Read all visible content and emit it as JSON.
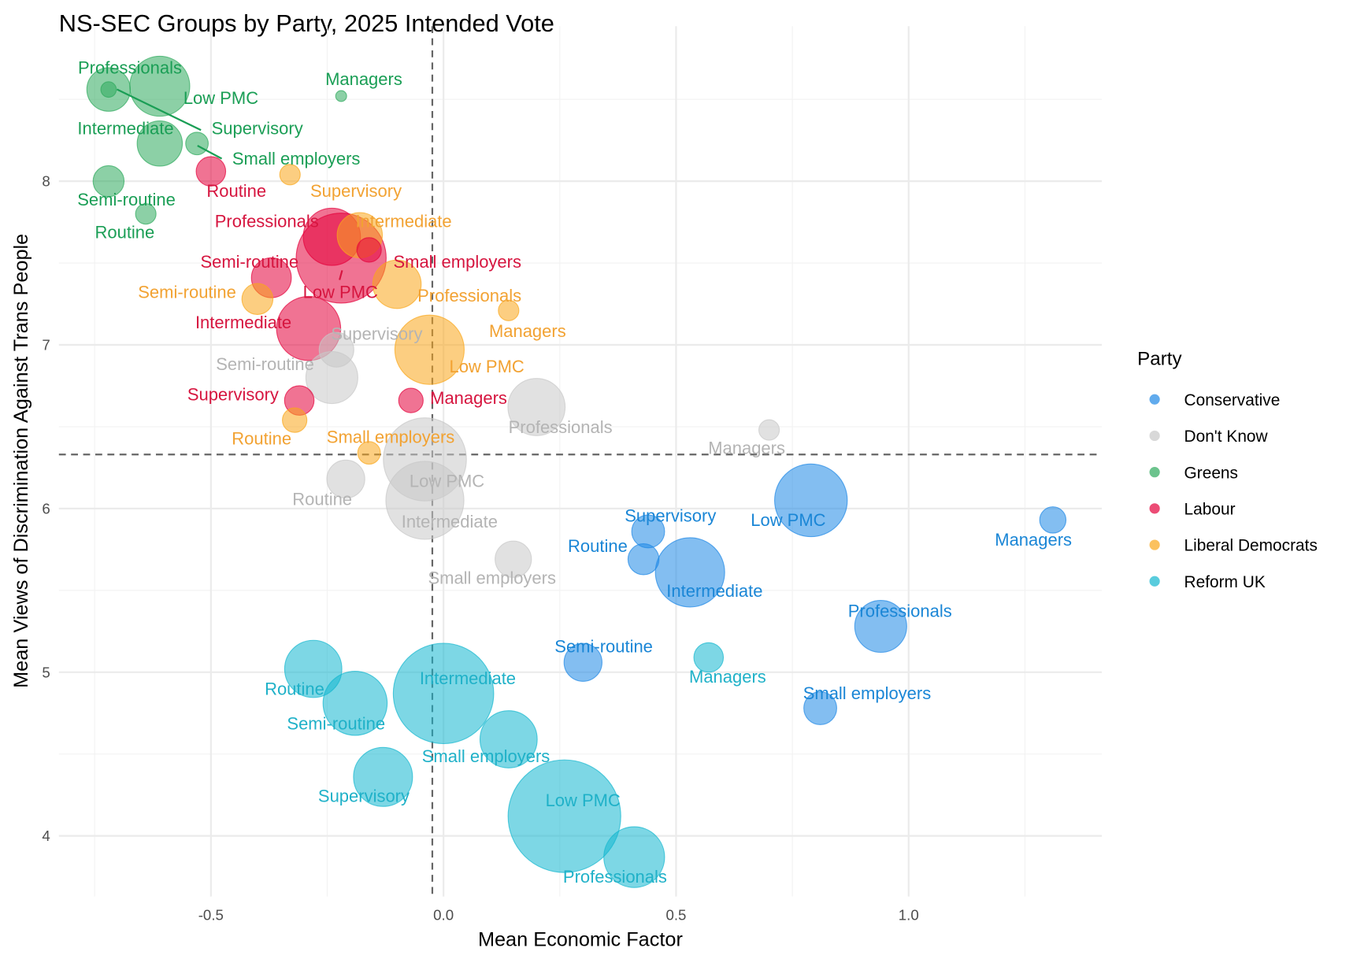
{
  "chart_data": {
    "type": "scatter",
    "title": "NS-SEC Groups by Party, 2025 Intended Vote",
    "xlabel": "Mean Economic Factor",
    "ylabel": "Mean Views of Discrimination Against Trans People",
    "xlim": [
      -0.82,
      1.42
    ],
    "ylim": [
      3.65,
      8.97
    ],
    "x_ticks": [
      {
        "value": -0.5,
        "label": "-0.5"
      },
      {
        "value": 0,
        "label": "0.0"
      },
      {
        "value": 0.5,
        "label": "0.5"
      },
      {
        "value": 1.0,
        "label": "1.0"
      }
    ],
    "y_ticks": [
      {
        "value": 4,
        "label": "4"
      },
      {
        "value": 5,
        "label": "5"
      },
      {
        "value": 6,
        "label": "6"
      },
      {
        "value": 7,
        "label": "7"
      },
      {
        "value": 8,
        "label": "8"
      }
    ],
    "grid": true,
    "reference_lines": {
      "x": -0.024,
      "y": 6.33
    },
    "legend": {
      "title": "Party",
      "placement": "right",
      "entries": [
        {
          "name": "Conservative",
          "color": "#1E88E5"
        },
        {
          "name": "Don't Know",
          "color": "#C8C8C8"
        },
        {
          "name": "Greens",
          "color": "#2EAA5C"
        },
        {
          "name": "Labour",
          "color": "#E4003B"
        },
        {
          "name": "Liberal Democrats",
          "color": "#FAA61A"
        },
        {
          "name": "Reform UK",
          "color": "#12B6CF"
        }
      ]
    },
    "label_colors": {
      "Conservative": "#1A86D6",
      "Don't Know": "#B4B4B4",
      "Greens": "#1A9E55",
      "Labour": "#D6153F",
      "Liberal Democrats": "#F2A232",
      "Reform UK": "#1FB1C8"
    },
    "size_note": "marker area proportional to group size (relative units)",
    "points": [
      {
        "party": "Greens",
        "group": "Professionals",
        "x": -0.72,
        "y": 8.56,
        "size": 6.3
      },
      {
        "party": "Greens",
        "group": "Low PMC",
        "x": -0.61,
        "y": 8.58,
        "size": 12.0
      },
      {
        "party": "Greens",
        "group": "Managers",
        "x": -0.22,
        "y": 8.52,
        "size": 0.4
      },
      {
        "party": "Greens",
        "group": "Intermediate",
        "x": -0.61,
        "y": 8.23,
        "size": 6.8
      },
      {
        "party": "Greens",
        "group": "Supervisory",
        "x": -0.72,
        "y": 8.56,
        "size": 0.8
      },
      {
        "party": "Greens",
        "group": "Small employers",
        "x": -0.53,
        "y": 8.23,
        "size": 1.7
      },
      {
        "party": "Greens",
        "group": "Semi-routine",
        "x": -0.72,
        "y": 8.0,
        "size": 3.2
      },
      {
        "party": "Greens",
        "group": "Routine",
        "x": -0.64,
        "y": 7.8,
        "size": 1.4
      },
      {
        "party": "Labour",
        "group": "Routine",
        "x": -0.5,
        "y": 8.06,
        "size": 2.9
      },
      {
        "party": "Labour",
        "group": "Professionals",
        "x": -0.24,
        "y": 7.66,
        "size": 10.9
      },
      {
        "party": "Labour",
        "group": "Small employers",
        "x": -0.16,
        "y": 7.58,
        "size": 2.0
      },
      {
        "party": "Labour",
        "group": "Low PMC",
        "x": -0.22,
        "y": 7.53,
        "size": 27.0
      },
      {
        "party": "Labour",
        "group": "Semi-routine",
        "x": -0.37,
        "y": 7.41,
        "size": 5.3
      },
      {
        "party": "Labour",
        "group": "Intermediate",
        "x": -0.29,
        "y": 7.1,
        "size": 13.7
      },
      {
        "party": "Labour",
        "group": "Supervisory",
        "x": -0.31,
        "y": 6.66,
        "size": 2.9
      },
      {
        "party": "Labour",
        "group": "Managers",
        "x": -0.07,
        "y": 6.66,
        "size": 2.0
      },
      {
        "party": "Liberal Democrats",
        "group": "Supervisory",
        "x": -0.33,
        "y": 8.04,
        "size": 1.4
      },
      {
        "party": "Liberal Democrats",
        "group": "Intermediate",
        "x": -0.18,
        "y": 7.67,
        "size": 6.8
      },
      {
        "party": "Liberal Democrats",
        "group": "Professionals",
        "x": -0.1,
        "y": 7.37,
        "size": 7.8
      },
      {
        "party": "Liberal Democrats",
        "group": "Semi-routine",
        "x": -0.4,
        "y": 7.28,
        "size": 3.2
      },
      {
        "party": "Liberal Democrats",
        "group": "Managers",
        "x": 0.14,
        "y": 7.21,
        "size": 1.4
      },
      {
        "party": "Liberal Democrats",
        "group": "Low PMC",
        "x": -0.03,
        "y": 6.97,
        "size": 16.0
      },
      {
        "party": "Liberal Democrats",
        "group": "Routine",
        "x": -0.32,
        "y": 6.54,
        "size": 2.0
      },
      {
        "party": "Liberal Democrats",
        "group": "Small employers",
        "x": -0.16,
        "y": 6.34,
        "size": 1.7
      },
      {
        "party": "Don't Know",
        "group": "Supervisory",
        "x": -0.23,
        "y": 6.97,
        "size": 4.0
      },
      {
        "party": "Don't Know",
        "group": "Semi-routine",
        "x": -0.24,
        "y": 6.8,
        "size": 9.0
      },
      {
        "party": "Don't Know",
        "group": "Professionals",
        "x": 0.2,
        "y": 6.62,
        "size": 10.9
      },
      {
        "party": "Don't Know",
        "group": "Managers",
        "x": 0.7,
        "y": 6.48,
        "size": 1.4
      },
      {
        "party": "Don't Know",
        "group": "Low PMC",
        "x": -0.04,
        "y": 6.3,
        "size": 23.0
      },
      {
        "party": "Don't Know",
        "group": "Routine",
        "x": -0.21,
        "y": 6.18,
        "size": 4.8
      },
      {
        "party": "Don't Know",
        "group": "Intermediate",
        "x": -0.04,
        "y": 6.05,
        "size": 20.3
      },
      {
        "party": "Don't Know",
        "group": "Small employers",
        "x": 0.15,
        "y": 5.69,
        "size": 4.4
      },
      {
        "party": "Conservative",
        "group": "Low PMC",
        "x": 0.79,
        "y": 6.05,
        "size": 17.6
      },
      {
        "party": "Conservative",
        "group": "Managers",
        "x": 1.31,
        "y": 5.93,
        "size": 2.3
      },
      {
        "party": "Conservative",
        "group": "Supervisory",
        "x": 0.44,
        "y": 5.86,
        "size": 3.6
      },
      {
        "party": "Conservative",
        "group": "Routine",
        "x": 0.43,
        "y": 5.69,
        "size": 3.2
      },
      {
        "party": "Conservative",
        "group": "Intermediate",
        "x": 0.53,
        "y": 5.61,
        "size": 16.0
      },
      {
        "party": "Conservative",
        "group": "Professionals",
        "x": 0.94,
        "y": 5.28,
        "size": 9.0
      },
      {
        "party": "Conservative",
        "group": "Semi-routine",
        "x": 0.3,
        "y": 5.06,
        "size": 4.8
      },
      {
        "party": "Conservative",
        "group": "Small employers",
        "x": 0.81,
        "y": 4.78,
        "size": 3.6
      },
      {
        "party": "Reform UK",
        "group": "Managers",
        "x": 0.57,
        "y": 5.09,
        "size": 2.9
      },
      {
        "party": "Reform UK",
        "group": "Routine",
        "x": -0.28,
        "y": 5.02,
        "size": 10.9
      },
      {
        "party": "Reform UK",
        "group": "Semi-routine",
        "x": -0.19,
        "y": 4.81,
        "size": 13.7
      },
      {
        "party": "Reform UK",
        "group": "Intermediate",
        "x": 0.0,
        "y": 4.87,
        "size": 33.6
      },
      {
        "party": "Reform UK",
        "group": "Small employers",
        "x": 0.14,
        "y": 4.59,
        "size": 10.9
      },
      {
        "party": "Reform UK",
        "group": "Supervisory",
        "x": -0.13,
        "y": 4.36,
        "size": 11.6
      },
      {
        "party": "Reform UK",
        "group": "Low PMC",
        "x": 0.26,
        "y": 4.12,
        "size": 42.3
      },
      {
        "party": "Reform UK",
        "group": "Professionals",
        "x": 0.41,
        "y": 3.87,
        "size": 12.3
      }
    ]
  }
}
